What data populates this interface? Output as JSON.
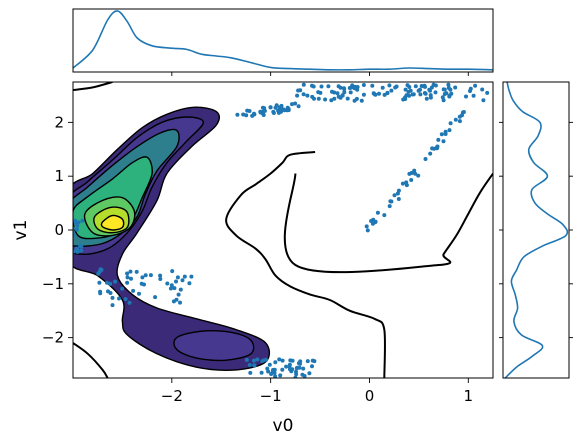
{
  "chart_data": {
    "type": "jointplot-kde-scatter",
    "xlabel": "v0",
    "ylabel": "v1",
    "xlim": [
      -3.0,
      1.25
    ],
    "ylim": [
      -2.75,
      2.75
    ],
    "x_ticks": [
      -2,
      -1,
      0,
      1
    ],
    "y_ticks": [
      -2,
      -1,
      0,
      1,
      2
    ],
    "x_tick_labels": [
      "−2",
      "−1",
      "0",
      "1"
    ],
    "y_tick_labels": [
      "−2",
      "−1",
      "0",
      "1",
      "2"
    ],
    "colors": {
      "scatter": "#1f77b4",
      "marginal": "#1f77b4",
      "contour_lines": "#000000",
      "kde_levels": [
        "#3b2a78",
        "#46388f",
        "#3a5f9a",
        "#2e7f8e",
        "#21a287",
        "#2db27d",
        "#5ec962",
        "#b4dd2c",
        "#fde725"
      ]
    },
    "kde_peaks": [
      {
        "x": -2.6,
        "y": 0.15,
        "label": "primary"
      },
      {
        "x": -1.55,
        "y": -2.15,
        "label": "secondary"
      }
    ],
    "scatter_clusters": [
      {
        "name": "top-arc",
        "x": [
          -1.35,
          -0.7
        ],
        "y": [
          2.1,
          2.4
        ],
        "count": 40
      },
      {
        "name": "top-band",
        "x": [
          -0.75,
          1.2
        ],
        "y": [
          2.4,
          2.7
        ],
        "count": 110
      },
      {
        "name": "diagonal",
        "x": [
          0.0,
          0.95
        ],
        "y": [
          0.0,
          2.2
        ],
        "count": 45
      },
      {
        "name": "left-edge",
        "x": [
          -3.0,
          -2.9
        ],
        "y": [
          -0.5,
          0.2
        ],
        "count": 15
      },
      {
        "name": "left-lower",
        "x": [
          -2.75,
          -1.8
        ],
        "y": [
          -1.4,
          -0.7
        ],
        "count": 50
      },
      {
        "name": "bottom-right",
        "x": [
          -1.25,
          -0.55
        ],
        "y": [
          -2.75,
          -2.4
        ],
        "count": 50
      }
    ],
    "marginal_x": {
      "x": [
        -3.0,
        -2.8,
        -2.65,
        -2.55,
        -2.45,
        -2.35,
        -2.2,
        -2.0,
        -1.85,
        -1.7,
        -1.55,
        -1.4,
        -1.2,
        -1.0,
        -0.8,
        -0.6,
        -0.4,
        -0.2,
        0.0,
        0.2,
        0.4,
        0.6,
        0.8,
        1.0,
        1.25
      ],
      "density": [
        0.05,
        0.35,
        0.85,
        1.0,
        0.82,
        0.55,
        0.42,
        0.38,
        0.36,
        0.28,
        0.25,
        0.22,
        0.14,
        0.06,
        0.04,
        0.03,
        0.02,
        0.02,
        0.03,
        0.03,
        0.05,
        0.04,
        0.03,
        0.03,
        0.02
      ]
    },
    "marginal_y": {
      "y": [
        -2.75,
        -2.55,
        -2.35,
        -2.15,
        -1.95,
        -1.7,
        -1.45,
        -1.2,
        -0.95,
        -0.75,
        -0.5,
        -0.3,
        -0.1,
        0.1,
        0.3,
        0.5,
        0.75,
        1.0,
        1.25,
        1.5,
        1.75,
        2.0,
        2.2,
        2.4,
        2.6,
        2.75
      ],
      "density": [
        0.02,
        0.2,
        0.45,
        0.62,
        0.28,
        0.16,
        0.22,
        0.18,
        0.12,
        0.2,
        0.32,
        0.62,
        1.0,
        0.95,
        0.7,
        0.5,
        0.45,
        0.7,
        0.48,
        0.4,
        0.55,
        0.58,
        0.3,
        0.15,
        0.08,
        0.05
      ]
    }
  }
}
